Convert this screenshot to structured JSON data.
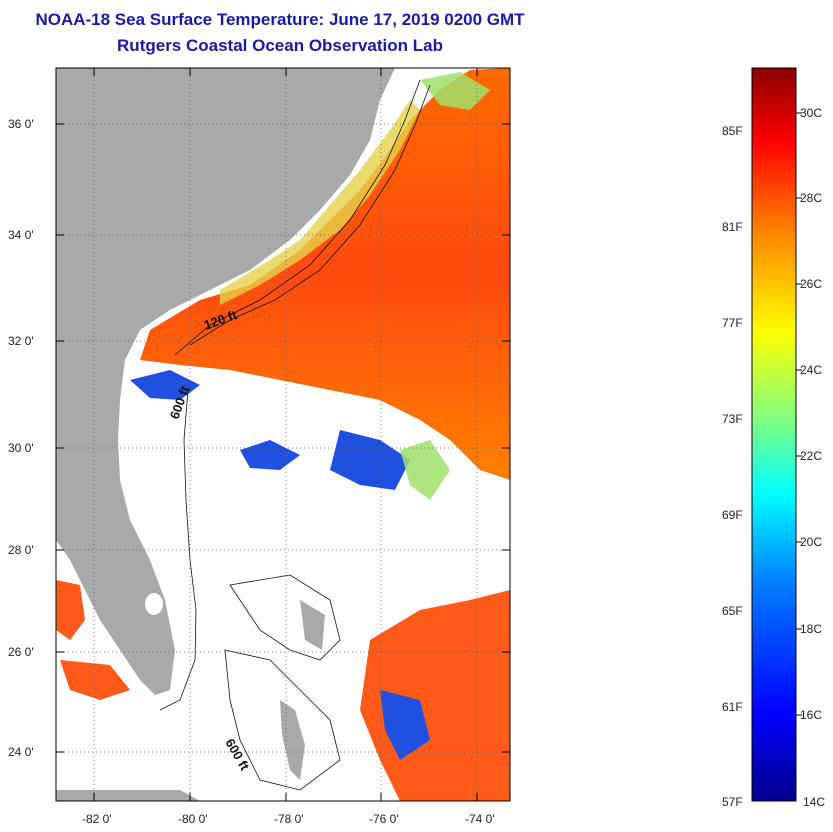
{
  "title": {
    "line1": "NOAA-18 Sea Surface Temperature:  June 17, 2019 0200 GMT",
    "line2": "Rutgers Coastal Ocean Observation Lab"
  },
  "map": {
    "lat_labels": [
      "36 0'",
      "34 0'",
      "32 0'",
      "30 0'",
      "28 0'",
      "26 0'",
      "24 0'"
    ],
    "lon_labels": [
      "-82 0'",
      "-80 0'",
      "-78 0'",
      "-76 0'",
      "-74 0'"
    ],
    "contour_labels": [
      "120 ft",
      "600 ft",
      "600 ft"
    ],
    "land_color": "#a9a9a9",
    "no_data_color": "#ffffff"
  },
  "colorbar": {
    "fahrenheit_labels": [
      "85F",
      "81F",
      "77F",
      "73F",
      "69F",
      "65F",
      "61F",
      "57F"
    ],
    "celsius_labels": [
      "30C",
      "28C",
      "26C",
      "24C",
      "22C",
      "20C",
      "18C",
      "16C",
      "14C"
    ],
    "range_c": [
      14,
      31
    ],
    "colors": [
      "#00008b",
      "#0000ff",
      "#0080ff",
      "#00ffff",
      "#80ff80",
      "#ffff00",
      "#ff8000",
      "#ff0000",
      "#8b0000"
    ]
  }
}
